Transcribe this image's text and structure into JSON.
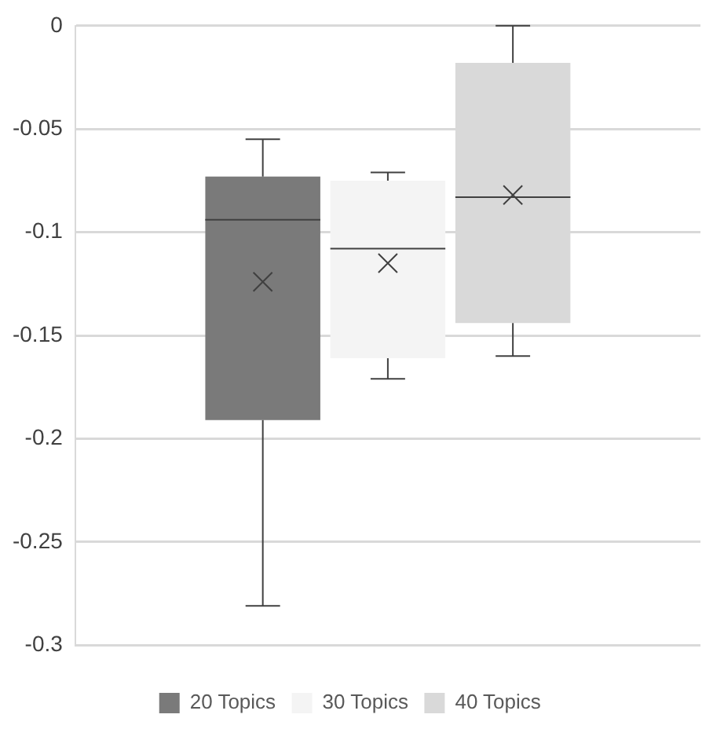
{
  "chart_data": {
    "type": "box",
    "categories": [
      null
    ],
    "series": [
      {
        "name": "20 Topics",
        "color": "#7a7a7a",
        "boxes": [
          {
            "low": -0.281,
            "q1": -0.191,
            "median": -0.094,
            "q3": -0.073,
            "high": -0.055,
            "mean": -0.124
          }
        ]
      },
      {
        "name": "30 Topics",
        "color": "#f4f4f4",
        "boxes": [
          {
            "low": -0.171,
            "q1": -0.161,
            "median": -0.108,
            "q3": -0.075,
            "high": -0.071,
            "mean": -0.115
          }
        ]
      },
      {
        "name": "40 Topics",
        "color": "#d9d9d9",
        "boxes": [
          {
            "low": -0.16,
            "q1": -0.144,
            "median": -0.083,
            "q3": -0.018,
            "high": 0,
            "mean": -0.082
          }
        ]
      }
    ],
    "ylim": [
      -0.3,
      0
    ],
    "yticks": [
      -0.3,
      -0.25,
      -0.2,
      -0.15,
      -0.1,
      -0.05,
      0
    ],
    "grid": "y",
    "legend": "bottom"
  }
}
